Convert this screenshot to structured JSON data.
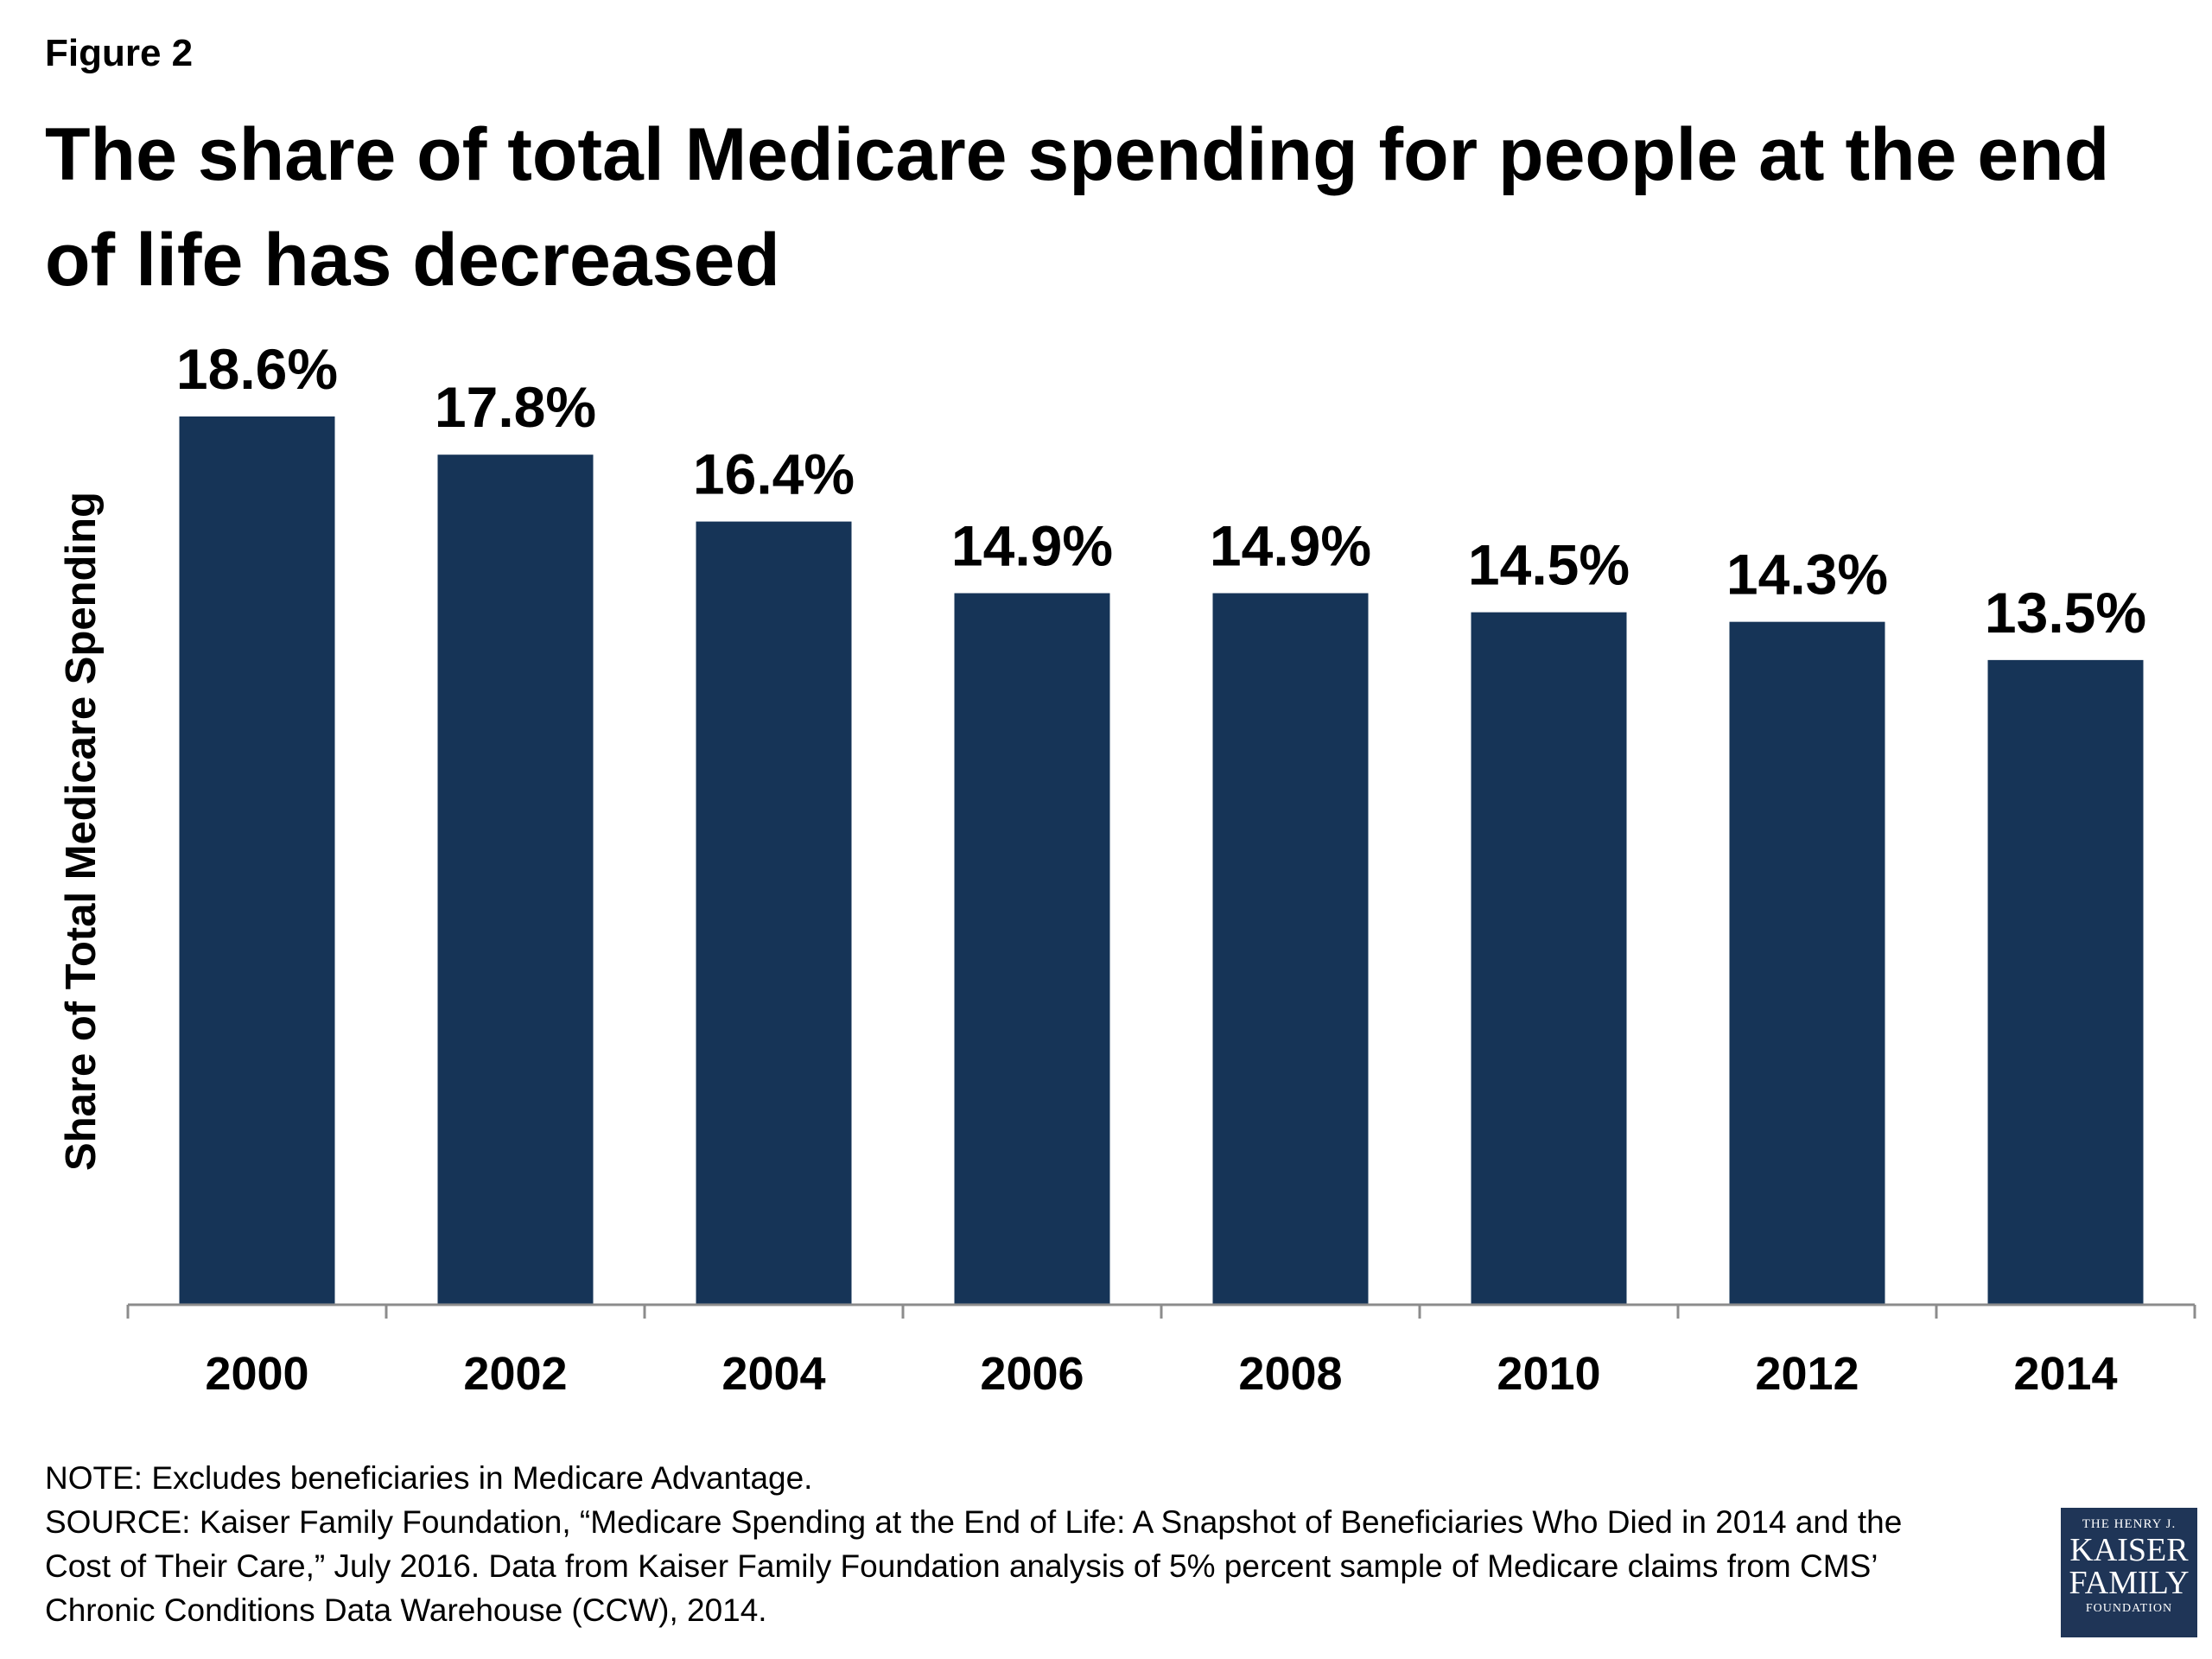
{
  "figure_label": "Figure 2",
  "title": "The share of total Medicare spending for people at the end of life has decreased",
  "note_lines": [
    "NOTE: Excludes beneficiaries in Medicare Advantage.",
    "SOURCE: Kaiser Family Foundation, “Medicare Spending at the End of Life: A Snapshot of Beneficiaries Who Died in 2014 and the",
    "Cost of Their Care,” July 2016. Data from Kaiser Family Foundation analysis of 5% percent sample of Medicare claims from CMS’",
    "Chronic Conditions Data Warehouse (CCW), 2014."
  ],
  "logo": {
    "line1": "THE HENRY J.",
    "line2": "KAISER",
    "line3": "FAMILY",
    "line4": "FOUNDATION"
  },
  "colors": {
    "bar": "#163457",
    "axis": "#8c8c8c",
    "logo_bg": "#1f3557"
  },
  "chart_data": {
    "type": "bar",
    "title": "The share of total Medicare spending for people at the end of life has decreased",
    "xlabel": "",
    "ylabel": "Share of Total Medicare Spending",
    "categories": [
      "2000",
      "2002",
      "2004",
      "2006",
      "2008",
      "2010",
      "2012",
      "2014"
    ],
    "values": [
      18.6,
      17.8,
      16.4,
      14.9,
      14.9,
      14.5,
      14.3,
      13.5
    ],
    "data_labels": [
      "18.6%",
      "17.8%",
      "16.4%",
      "14.9%",
      "14.9%",
      "14.5%",
      "14.3%",
      "13.5%"
    ],
    "unit": "%",
    "ylim": [
      0,
      18.6
    ],
    "grid": false,
    "legend": "none"
  }
}
